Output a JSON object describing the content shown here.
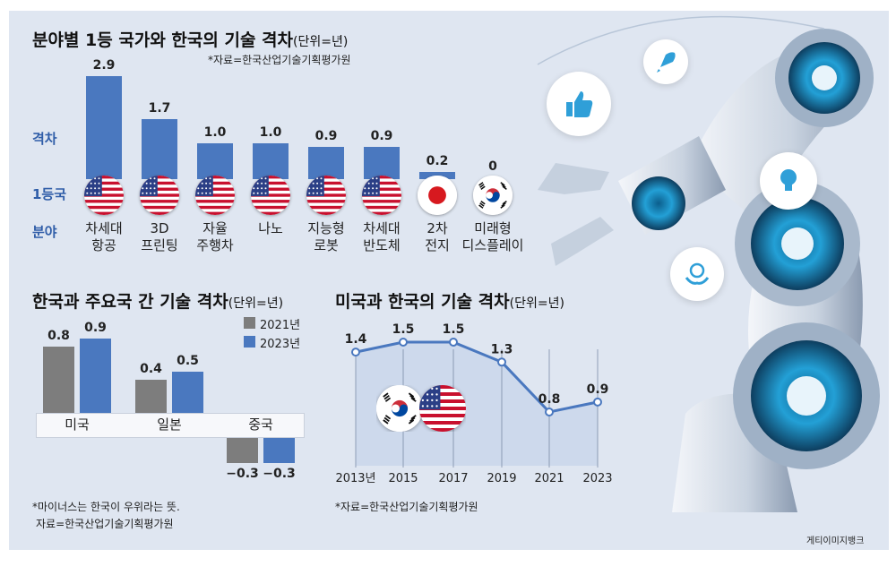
{
  "top_chart": {
    "title": "분야별 1등 국가와 한국의 기술 격차",
    "unit": "(단위=년)",
    "source": "*자료=한국산업기술기획평가원",
    "row_labels": {
      "gap": "격차",
      "first": "1등국",
      "field": "분야"
    }
  },
  "left_chart": {
    "title": "한국과 주요국 간 기술 격차",
    "unit": "(단위=년)",
    "note": "*마이너스는 한국이 우위라는 뜻.",
    "source": "자료=한국산업기술기획평가원"
  },
  "right_chart": {
    "title": "미국과 한국의 기술 격차",
    "unit": "(단위=년)",
    "source": "*자료=한국산업기술기획평가원"
  },
  "credit": "게티이미지뱅크",
  "colors": {
    "bar_blue": "#4a78bf",
    "bar_grey": "#7d7d7d",
    "line": "#4a78bf",
    "label_blue": "#2f5da8",
    "background": "#dfe6f1"
  },
  "illustration": {
    "robot_arm": "robot-arm-illustration",
    "icons": [
      "thumbs-up-icon",
      "rocket-icon",
      "lightbulb-icon",
      "globe-hands-icon"
    ]
  },
  "chart_data": [
    {
      "type": "bar",
      "categories": [
        "차세대\n항공",
        "3D\n프린팅",
        "자율\n주행차",
        "나노",
        "지능형\n로봇",
        "차세대\n반도체",
        "2차\n전지",
        "미래형\n디스플레이"
      ],
      "values": [
        2.9,
        1.7,
        1.0,
        1.0,
        0.9,
        0.9,
        0.2,
        0
      ],
      "value_labels": [
        "2.9",
        "1.7",
        "1.0",
        "1.0",
        "0.9",
        "0.9",
        "0.2",
        "0"
      ],
      "leader_flags": [
        "us-flag",
        "us-flag",
        "us-flag",
        "us-flag",
        "us-flag",
        "us-flag",
        "japan-flag",
        "korea-flag"
      ],
      "ylim": [
        0,
        2.9
      ]
    },
    {
      "type": "bar",
      "categories": [
        "미국",
        "일본",
        "중국"
      ],
      "series": [
        {
          "name": "2021년",
          "values": [
            0.8,
            0.4,
            -0.3
          ],
          "labels": [
            "0.8",
            "0.4",
            "−0.3"
          ]
        },
        {
          "name": "2023년",
          "values": [
            0.9,
            0.5,
            -0.3
          ],
          "labels": [
            "0.9",
            "0.5",
            "−0.3"
          ]
        }
      ],
      "ylim": [
        -0.3,
        0.9
      ]
    },
    {
      "type": "line",
      "x": [
        "2013년",
        "2015",
        "2017",
        "2019",
        "2021",
        "2023"
      ],
      "values": [
        1.4,
        1.5,
        1.5,
        1.3,
        0.8,
        0.9
      ],
      "value_labels": [
        "1.4",
        "1.5",
        "1.5",
        "1.3",
        "0.8",
        "0.9"
      ],
      "ylim": [
        0.8,
        1.5
      ]
    }
  ]
}
